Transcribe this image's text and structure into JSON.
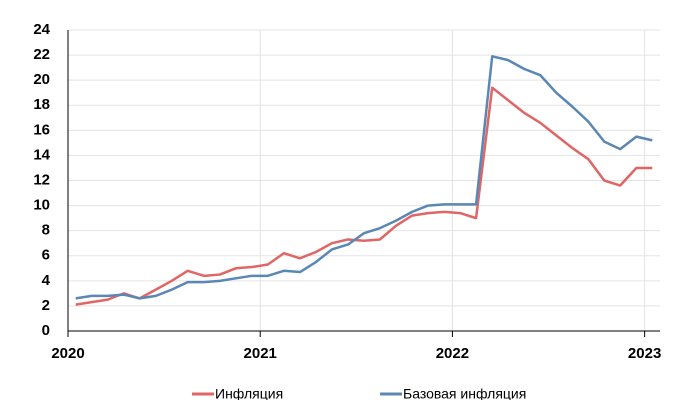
{
  "chart_data": {
    "type": "line",
    "x": [
      2020.04,
      2020.123,
      2020.207,
      2020.29,
      2020.373,
      2020.457,
      2020.54,
      2020.623,
      2020.707,
      2020.79,
      2020.873,
      2020.957,
      2021.04,
      2021.123,
      2021.207,
      2021.29,
      2021.373,
      2021.457,
      2021.54,
      2021.623,
      2021.707,
      2021.79,
      2021.873,
      2021.957,
      2022.04,
      2022.123,
      2022.207,
      2022.29,
      2022.373,
      2022.457,
      2022.54,
      2022.623,
      2022.707,
      2022.79,
      2022.873,
      2022.957,
      2023.04
    ],
    "series": [
      {
        "name": "Инфляция",
        "color": "#e06666",
        "values": [
          2.1,
          2.3,
          2.5,
          3.0,
          2.6,
          3.3,
          4.0,
          4.8,
          4.4,
          4.5,
          5.0,
          5.1,
          5.3,
          6.2,
          5.8,
          6.3,
          7.0,
          7.3,
          7.2,
          7.3,
          8.4,
          9.2,
          9.4,
          9.5,
          9.4,
          9.0,
          19.4,
          18.4,
          17.4,
          16.6,
          15.6,
          14.6,
          13.7,
          12.0,
          11.6,
          13.0,
          13.0
        ]
      },
      {
        "name": "Базовая инфляция",
        "color": "#5b87b5",
        "values": [
          2.6,
          2.8,
          2.8,
          2.9,
          2.6,
          2.8,
          3.3,
          3.9,
          3.9,
          4.0,
          4.2,
          4.4,
          4.4,
          4.8,
          4.7,
          5.5,
          6.5,
          6.9,
          7.8,
          8.2,
          8.8,
          9.5,
          10.0,
          10.1,
          10.1,
          10.1,
          21.9,
          21.6,
          20.9,
          20.4,
          19.0,
          17.9,
          16.7,
          15.1,
          14.5,
          15.5,
          15.2
        ]
      }
    ],
    "xlim": [
      2020,
      2023.08
    ],
    "xticks": [
      2020,
      2021,
      2022,
      2023
    ],
    "ylim": [
      0,
      24
    ],
    "yticks": [
      0,
      2,
      4,
      6,
      8,
      10,
      12,
      14,
      16,
      18,
      20,
      22,
      24
    ],
    "grid": true,
    "legend": "bottom"
  }
}
